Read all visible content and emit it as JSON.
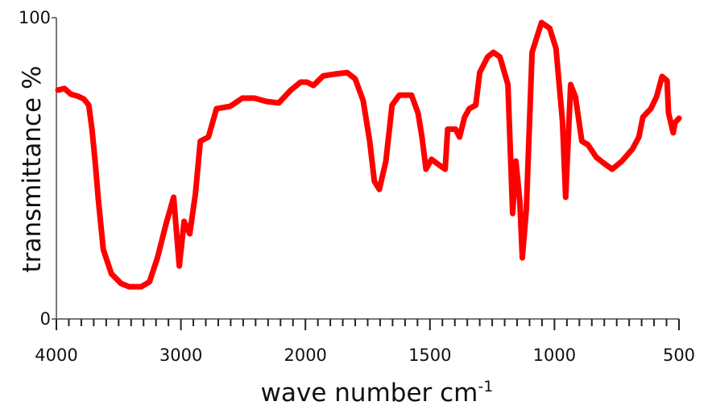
{
  "chart_data": {
    "type": "line",
    "xlabel": {
      "text": "wave number cm",
      "sup": "-1"
    },
    "ylabel": "transmittance %",
    "xlim": [
      4000,
      500
    ],
    "xticks": [
      4000,
      3000,
      2000,
      1500,
      1000,
      500
    ],
    "xminor_ticks": [
      3900,
      3800,
      3700,
      3600,
      3500,
      3400,
      3300,
      3200,
      3100,
      2900,
      2800,
      2700,
      2600,
      2500,
      2400,
      2300,
      2200,
      2100,
      1950,
      1900,
      1850,
      1800,
      1750,
      1700,
      1650,
      1600,
      1550,
      1450,
      1400,
      1350,
      1300,
      1250,
      1200,
      1150,
      1100,
      1050,
      950,
      900,
      850,
      800,
      750,
      700,
      650,
      600,
      550
    ],
    "ylim": [
      0,
      100
    ],
    "yticks": [
      0,
      100
    ],
    "series": [
      {
        "color": "#ff0000",
        "x": [
          3987,
          3935,
          3883,
          3831,
          3779,
          3740,
          3714,
          3688,
          3662,
          3623,
          3558,
          3481,
          3416,
          3318,
          3253,
          3188,
          3123,
          3058,
          3013,
          2974,
          2929,
          2883,
          2844,
          2779,
          2714,
          2604,
          2507,
          2409,
          2312,
          2214,
          2117,
          2039,
          1994,
          1968,
          1929,
          1881,
          1832,
          1800,
          1768,
          1742,
          1723,
          1703,
          1677,
          1652,
          1623,
          1574,
          1548,
          1532,
          1516,
          1494,
          1461,
          1439,
          1429,
          1397,
          1381,
          1361,
          1342,
          1316,
          1300,
          1268,
          1245,
          1219,
          1187,
          1168,
          1155,
          1139,
          1129,
          1113,
          1090,
          1052,
          1019,
          994,
          968,
          955,
          935,
          916,
          890,
          865,
          832,
          800,
          768,
          729,
          687,
          661,
          645,
          613,
          590,
          568,
          548,
          542,
          523,
          516,
          500
        ],
        "values": [
          76,
          76.5,
          74.6,
          74,
          73,
          71,
          63,
          52,
          39,
          23,
          15,
          11.8,
          10.7,
          10.7,
          12.3,
          20.3,
          31,
          40.4,
          17.6,
          32.4,
          28.3,
          41.7,
          59,
          60.4,
          69.8,
          70.6,
          73.3,
          73.3,
          72.2,
          71.7,
          76,
          78.6,
          78.6,
          77.5,
          80.7,
          81.3,
          81.8,
          79.7,
          72.5,
          59,
          45.7,
          43,
          52.4,
          71,
          74.3,
          74.3,
          68.4,
          60.4,
          49.7,
          53,
          51,
          49.7,
          63,
          63,
          60.4,
          67,
          69.8,
          71,
          81.8,
          87,
          88.5,
          87,
          77.8,
          35,
          52.4,
          39,
          20.3,
          36.4,
          88.5,
          98.4,
          96.5,
          89.8,
          65.8,
          40.4,
          77.8,
          73.8,
          59,
          57.8,
          53.7,
          51.6,
          49.7,
          52.4,
          56.4,
          60.4,
          67,
          69.8,
          73.8,
          80.5,
          79.1,
          68.4,
          61.8,
          65.2,
          66.6
        ]
      }
    ]
  }
}
